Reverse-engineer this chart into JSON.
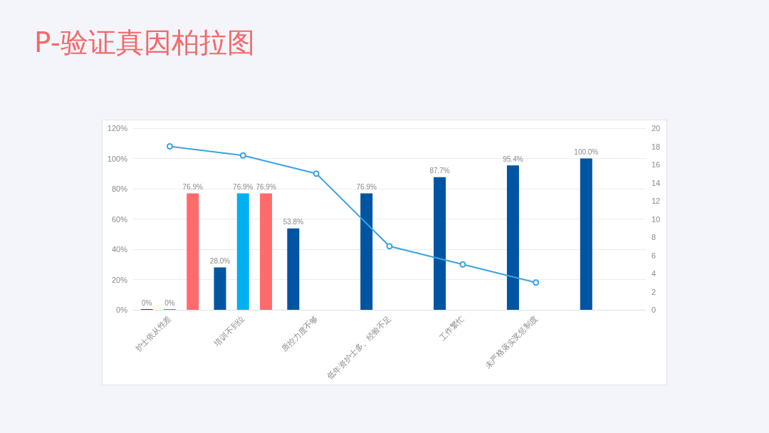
{
  "chart_data": {
    "type": "bar",
    "title": "P-验证真因柏拉图",
    "categories": [
      "护士依从性差",
      "培训不到位",
      "质控力度不够",
      "低年资护士多、经验不足",
      "工作繁忙",
      "未严格落实奖惩制度",
      null
    ],
    "series": [
      {
        "color": "#0055a2",
        "values": [
          0,
          28.0,
          53.8,
          76.9,
          87.7,
          95.4,
          100.0
        ],
        "value_labels": [
          "0%",
          "28.0%",
          "53.8%",
          "76.9%",
          "87.7%",
          "95.4%",
          "100.0%"
        ]
      },
      {
        "color": "#00b0f0",
        "values": [
          0,
          76.9,
          null,
          null,
          null,
          null,
          null
        ],
        "value_labels": [
          "0%",
          "76.9%",
          null,
          null,
          null,
          null,
          null
        ]
      },
      {
        "color": "#ff6b6b",
        "values": [
          76.9,
          76.9,
          null,
          null,
          null,
          null,
          null
        ],
        "value_labels": [
          "76.9%",
          "76.9%",
          null,
          null,
          null,
          null,
          null
        ]
      },
      {
        "type": "line",
        "axis": "y2",
        "color": "#3ba3dd",
        "values": [
          18,
          17,
          15,
          7,
          5,
          3,
          null
        ]
      }
    ],
    "ylim": [
      0,
      120
    ],
    "yticks": [
      {
        "value": 0,
        "label": "0%"
      },
      {
        "value": 20,
        "label": "20%"
      },
      {
        "value": 40,
        "label": "40%"
      },
      {
        "value": 60,
        "label": "60%"
      },
      {
        "value": 80,
        "label": "80%"
      },
      {
        "value": 100,
        "label": "100%"
      },
      {
        "value": 120,
        "label": "120%"
      }
    ],
    "y2lim": [
      0,
      20
    ],
    "y2ticks": [
      0,
      2,
      4,
      6,
      8,
      10,
      12,
      14,
      16,
      18,
      20
    ],
    "grid": "y",
    "marker": "circle"
  }
}
